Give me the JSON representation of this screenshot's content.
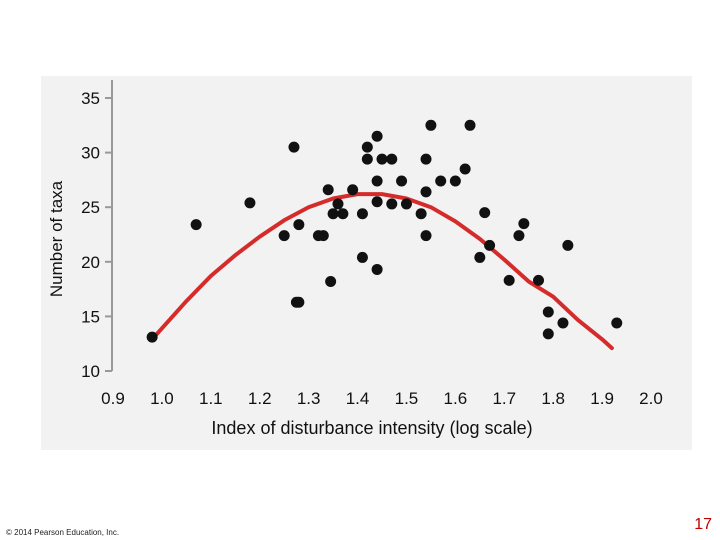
{
  "chart_data": {
    "type": "scatter",
    "title": "",
    "xlabel": "Index of disturbance intensity (log scale)",
    "ylabel": "Number of taxa",
    "xlim": [
      0.9,
      2.0
    ],
    "ylim": [
      10,
      35
    ],
    "x_ticks": [
      "0.9",
      "1.0",
      "1.1",
      "1.2",
      "1.3",
      "1.4",
      "1.5",
      "1.6",
      "1.7",
      "1.8",
      "1.9",
      "2.0"
    ],
    "y_ticks": [
      "10",
      "15",
      "20",
      "25",
      "30",
      "35"
    ],
    "grid": false,
    "colors": {
      "points": "#111111",
      "curve": "#d62b2b",
      "axis": "#999999",
      "panel": "#f2f2f2"
    },
    "points": [
      {
        "x": 0.98,
        "y": 13.1
      },
      {
        "x": 1.07,
        "y": 23.4
      },
      {
        "x": 1.18,
        "y": 25.4
      },
      {
        "x": 1.25,
        "y": 22.4
      },
      {
        "x": 1.27,
        "y": 30.5
      },
      {
        "x": 1.275,
        "y": 16.3
      },
      {
        "x": 1.28,
        "y": 16.3
      },
      {
        "x": 1.28,
        "y": 23.4
      },
      {
        "x": 1.32,
        "y": 22.4
      },
      {
        "x": 1.33,
        "y": 22.4
      },
      {
        "x": 1.34,
        "y": 26.6
      },
      {
        "x": 1.345,
        "y": 18.2
      },
      {
        "x": 1.35,
        "y": 24.4
      },
      {
        "x": 1.36,
        "y": 25.3
      },
      {
        "x": 1.37,
        "y": 24.4
      },
      {
        "x": 1.39,
        "y": 26.6
      },
      {
        "x": 1.41,
        "y": 20.4
      },
      {
        "x": 1.41,
        "y": 24.4
      },
      {
        "x": 1.42,
        "y": 29.4
      },
      {
        "x": 1.42,
        "y": 30.5
      },
      {
        "x": 1.44,
        "y": 31.5
      },
      {
        "x": 1.44,
        "y": 27.4
      },
      {
        "x": 1.44,
        "y": 25.5
      },
      {
        "x": 1.44,
        "y": 19.3
      },
      {
        "x": 1.45,
        "y": 29.4
      },
      {
        "x": 1.47,
        "y": 29.4
      },
      {
        "x": 1.47,
        "y": 25.3
      },
      {
        "x": 1.49,
        "y": 27.4
      },
      {
        "x": 1.5,
        "y": 25.3
      },
      {
        "x": 1.53,
        "y": 24.4
      },
      {
        "x": 1.54,
        "y": 29.4
      },
      {
        "x": 1.54,
        "y": 26.4
      },
      {
        "x": 1.54,
        "y": 22.4
      },
      {
        "x": 1.55,
        "y": 32.5
      },
      {
        "x": 1.57,
        "y": 27.4
      },
      {
        "x": 1.6,
        "y": 27.4
      },
      {
        "x": 1.62,
        "y": 28.5
      },
      {
        "x": 1.63,
        "y": 32.5
      },
      {
        "x": 1.65,
        "y": 20.4
      },
      {
        "x": 1.66,
        "y": 24.5
      },
      {
        "x": 1.67,
        "y": 21.5
      },
      {
        "x": 1.71,
        "y": 18.3
      },
      {
        "x": 1.73,
        "y": 22.4
      },
      {
        "x": 1.74,
        "y": 23.5
      },
      {
        "x": 1.77,
        "y": 18.3
      },
      {
        "x": 1.79,
        "y": 15.4
      },
      {
        "x": 1.79,
        "y": 13.4
      },
      {
        "x": 1.82,
        "y": 14.4
      },
      {
        "x": 1.83,
        "y": 21.5
      },
      {
        "x": 1.93,
        "y": 14.4
      }
    ],
    "fit_curve": {
      "x": [
        0.98,
        1.05,
        1.1,
        1.15,
        1.2,
        1.25,
        1.3,
        1.35,
        1.4,
        1.45,
        1.5,
        1.55,
        1.6,
        1.65,
        1.7,
        1.75,
        1.8,
        1.85,
        1.9,
        1.92
      ],
      "y": [
        12.9,
        16.4,
        18.7,
        20.6,
        22.3,
        23.8,
        25.0,
        25.8,
        26.2,
        26.2,
        25.8,
        25.0,
        23.7,
        22.1,
        20.2,
        18.2,
        16.8,
        14.7,
        12.9,
        12.1
      ]
    }
  },
  "footer": {
    "copyright": "© 2014 Pearson Education, Inc.",
    "slide_number": "17"
  }
}
